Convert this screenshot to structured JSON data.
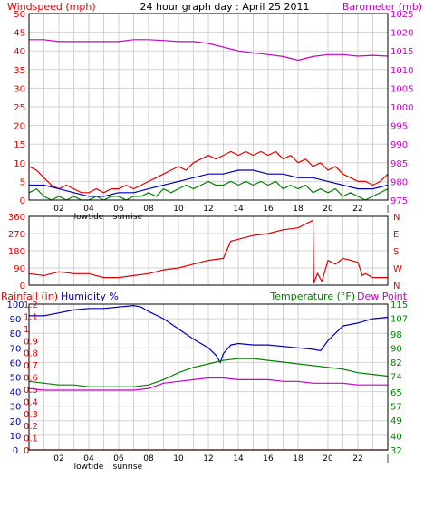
{
  "colors": {
    "red": "#e00000",
    "blue": "#0000b4",
    "green": "#008200",
    "magenta": "#c800c8",
    "grid": "#d2d2d2",
    "frame": "#000000"
  },
  "chart_data": [
    {
      "type": "line",
      "title": "24 hour graph day : April 25 2011",
      "left_axis": {
        "label": "Windspeed (mph)",
        "ticks": [
          0,
          5,
          10,
          15,
          20,
          25,
          30,
          35,
          40,
          45,
          50
        ],
        "range": [
          0,
          50
        ]
      },
      "right_axis": {
        "label": "Barometer (mb)",
        "ticks": [
          975,
          980,
          985,
          990,
          995,
          1000,
          1005,
          1010,
          1015,
          1020,
          1025
        ],
        "range": [
          975,
          1025
        ]
      },
      "x_ticks": [
        "02",
        "04",
        "06",
        "08",
        "10",
        "12",
        "14",
        "16",
        "18",
        "20",
        "22"
      ],
      "x_range": [
        0,
        24
      ],
      "markers": [
        "lowtide",
        "sunrise"
      ],
      "grid": true,
      "series": [
        {
          "axis": "left",
          "color": "red",
          "x": [
            0,
            0.5,
            1,
            1.5,
            2,
            2.5,
            3,
            3.5,
            4,
            4.5,
            5,
            5.5,
            6,
            6.5,
            7,
            7.5,
            8,
            8.5,
            9,
            9.5,
            10,
            10.5,
            11,
            11.5,
            12,
            12.5,
            13,
            13.5,
            14,
            14.5,
            15,
            15.5,
            16,
            16.5,
            17,
            17.5,
            18,
            18.5,
            19,
            19.5,
            20,
            20.5,
            21,
            21.5,
            22,
            22.5,
            23,
            23.5,
            24
          ],
          "y": [
            9,
            8,
            6,
            4,
            3,
            4,
            3,
            2,
            2,
            3,
            2,
            3,
            3,
            4,
            3,
            4,
            5,
            6,
            7,
            8,
            9,
            8,
            10,
            11,
            12,
            11,
            12,
            13,
            12,
            13,
            12,
            13,
            12,
            13,
            11,
            12,
            10,
            11,
            9,
            10,
            8,
            9,
            7,
            6,
            5,
            5,
            4,
            5,
            7
          ]
        },
        {
          "axis": "left",
          "color": "blue",
          "x": [
            0,
            1,
            2,
            3,
            4,
            5,
            6,
            7,
            8,
            9,
            10,
            11,
            12,
            13,
            14,
            15,
            16,
            17,
            18,
            19,
            20,
            21,
            22,
            23,
            24
          ],
          "y": [
            4,
            4,
            3,
            2,
            1,
            1,
            2,
            2,
            3,
            4,
            5,
            6,
            7,
            7,
            8,
            8,
            7,
            7,
            6,
            6,
            5,
            4,
            3,
            3,
            4
          ]
        },
        {
          "axis": "left",
          "color": "green",
          "x": [
            0,
            0.5,
            1,
            1.5,
            2,
            2.5,
            3,
            3.5,
            4,
            4.5,
            5,
            5.5,
            6,
            6.5,
            7,
            7.5,
            8,
            8.5,
            9,
            9.5,
            10,
            10.5,
            11,
            11.5,
            12,
            12.5,
            13,
            13.5,
            14,
            14.5,
            15,
            15.5,
            16,
            16.5,
            17,
            17.5,
            18,
            18.5,
            19,
            19.5,
            20,
            20.5,
            21,
            21.5,
            22,
            22.5,
            23,
            23.5,
            24
          ],
          "y": [
            2,
            3,
            1,
            0,
            1,
            0,
            1,
            0,
            0,
            1,
            0,
            1,
            1,
            0,
            1,
            1,
            2,
            1,
            3,
            2,
            3,
            4,
            3,
            4,
            5,
            4,
            4,
            5,
            4,
            5,
            4,
            5,
            4,
            5,
            3,
            4,
            3,
            4,
            2,
            3,
            2,
            3,
            1,
            2,
            1,
            0,
            1,
            2,
            3
          ]
        },
        {
          "axis": "right",
          "color": "magenta",
          "x": [
            0,
            1,
            2,
            3,
            4,
            5,
            6,
            7,
            8,
            9,
            10,
            11,
            12,
            13,
            14,
            15,
            16,
            17,
            18,
            19,
            20,
            21,
            22,
            23,
            24
          ],
          "y": [
            1018,
            1018,
            1017.5,
            1017.5,
            1017.5,
            1017.5,
            1017.5,
            1018,
            1018,
            1017.8,
            1017.5,
            1017.5,
            1017,
            1016,
            1015,
            1014.5,
            1014,
            1013.5,
            1012.5,
            1013.5,
            1014,
            1014,
            1013.6,
            1013.8,
            1013.6
          ]
        }
      ]
    },
    {
      "type": "line",
      "left_axis": {
        "ticks": [
          0,
          90,
          180,
          270,
          360
        ],
        "range": [
          0,
          360
        ]
      },
      "right_axis": {
        "ticks": [
          "N",
          "W",
          "S",
          "E",
          "N"
        ]
      },
      "x_range": [
        0,
        24
      ],
      "grid": true,
      "series": [
        {
          "axis": "left",
          "color": "red",
          "x": [
            0,
            1,
            2,
            3,
            4,
            5,
            6,
            7,
            8,
            9,
            10,
            11,
            12,
            13,
            13.5,
            14,
            15,
            16,
            17,
            18,
            19,
            19.05,
            19.3,
            19.6,
            20,
            20.5,
            21,
            22,
            22.3,
            22.5,
            23,
            24
          ],
          "y": [
            60,
            50,
            70,
            60,
            60,
            40,
            40,
            50,
            60,
            80,
            90,
            110,
            130,
            140,
            230,
            240,
            260,
            270,
            290,
            300,
            340,
            10,
            60,
            20,
            130,
            110,
            140,
            120,
            50,
            60,
            40,
            40
          ]
        }
      ]
    },
    {
      "type": "line",
      "left_axis_rain": {
        "label": "Rainfall (in)",
        "ticks": [
          0,
          0.1,
          0.2,
          0.3,
          0.4,
          0.5,
          0.6,
          0.7,
          0.8,
          0.9,
          1,
          1.1,
          1.2
        ],
        "range": [
          0,
          1.2
        ]
      },
      "left_axis_humidity": {
        "label": "Humidity %",
        "ticks": [
          0,
          10,
          20,
          30,
          40,
          50,
          60,
          70,
          80,
          90,
          100
        ],
        "range": [
          0,
          100
        ]
      },
      "right_axis": {
        "label": "Temperature (°F)",
        "label2": "Dew Point",
        "ticks": [
          32,
          40,
          49,
          57,
          65,
          74,
          82,
          90,
          98,
          107,
          115
        ],
        "range": [
          32,
          115
        ]
      },
      "x_ticks": [
        "02",
        "04",
        "06",
        "08",
        "10",
        "12",
        "14",
        "16",
        "18",
        "20",
        "22"
      ],
      "x_range": [
        0,
        24
      ],
      "markers": [
        "lowtide",
        "sunrise"
      ],
      "grid": true,
      "series": [
        {
          "axis": "humidity",
          "color": "blue",
          "x": [
            0,
            1,
            2,
            3,
            4,
            5,
            6,
            7,
            7.5,
            8,
            9,
            10,
            11,
            12,
            12.5,
            12.8,
            13,
            13.5,
            14,
            15,
            16,
            17,
            18,
            19,
            19.5,
            20,
            21,
            22,
            23,
            24
          ],
          "y": [
            92,
            92,
            94,
            96,
            97,
            97,
            98,
            99,
            98,
            95,
            90,
            83,
            76,
            70,
            65,
            60,
            66,
            72,
            73,
            72,
            72,
            71,
            70,
            69,
            68,
            75,
            85,
            87,
            90,
            91
          ]
        },
        {
          "axis": "temp",
          "color": "green",
          "x": [
            0,
            1,
            2,
            3,
            4,
            5,
            6,
            7,
            8,
            9,
            10,
            11,
            12,
            13,
            14,
            15,
            16,
            17,
            18,
            19,
            20,
            21,
            22,
            23,
            24
          ],
          "y": [
            71,
            70,
            69,
            69,
            68,
            68,
            68,
            68,
            69,
            72,
            76,
            79,
            81,
            83,
            84,
            84,
            83,
            82,
            81,
            80,
            79,
            78,
            76,
            75,
            74
          ]
        },
        {
          "axis": "temp",
          "color": "magenta",
          "x": [
            0,
            1,
            2,
            3,
            4,
            5,
            6,
            7,
            8,
            9,
            10,
            11,
            12,
            13,
            14,
            15,
            16,
            17,
            18,
            19,
            20,
            21,
            22,
            23,
            24
          ],
          "y": [
            67,
            66,
            66,
            66,
            66,
            66,
            66,
            66,
            67,
            70,
            71,
            72,
            73,
            73,
            72,
            72,
            72,
            71,
            71,
            70,
            70,
            70,
            69,
            69,
            69
          ]
        },
        {
          "axis": "rain",
          "color": "red",
          "x": [
            0,
            24
          ],
          "y": [
            0,
            0
          ]
        }
      ]
    }
  ]
}
